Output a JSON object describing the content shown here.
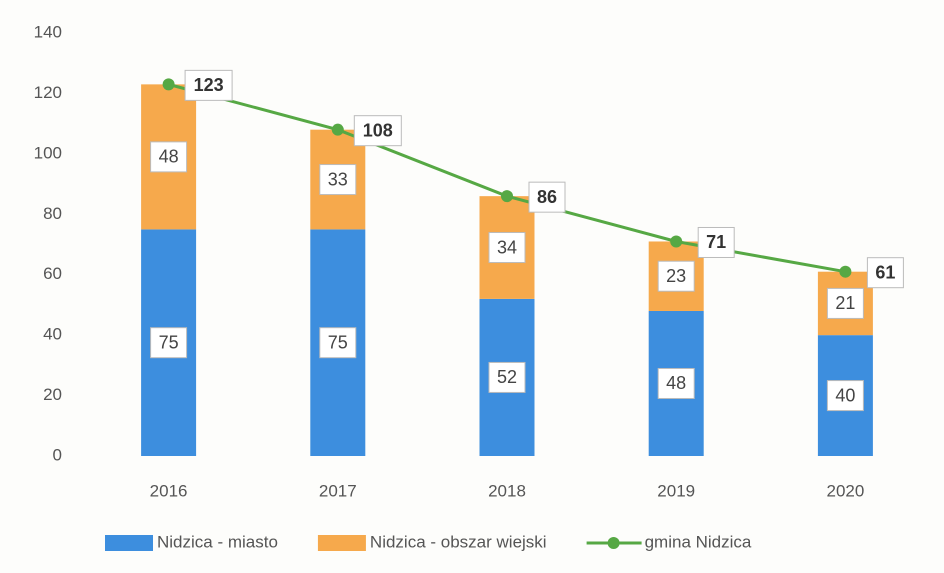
{
  "chart_data": {
    "type": "bar",
    "stacked": true,
    "categories": [
      "2016",
      "2017",
      "2018",
      "2019",
      "2020"
    ],
    "series": [
      {
        "name": "Nidzica - miasto",
        "type": "bar",
        "color": "#3d8ede",
        "values": [
          75,
          75,
          52,
          48,
          40
        ]
      },
      {
        "name": "Nidzica - obszar wiejski",
        "type": "bar",
        "color": "#f6a94c",
        "values": [
          48,
          33,
          34,
          23,
          21
        ]
      },
      {
        "name": "gmina Nidzica",
        "type": "line",
        "color": "#56a844",
        "values": [
          123,
          108,
          86,
          71,
          61
        ]
      }
    ],
    "ylim": [
      0,
      140
    ],
    "yticks": [
      0,
      20,
      40,
      60,
      80,
      100,
      120,
      140
    ],
    "grid": false,
    "legend": "bottom"
  }
}
